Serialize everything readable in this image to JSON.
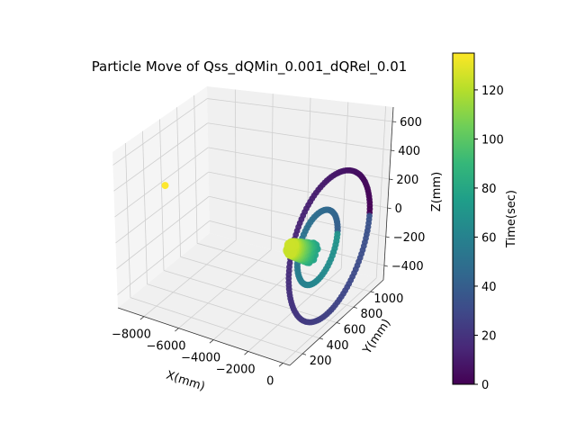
{
  "chart_data": {
    "type": "scatter",
    "projection": "3d",
    "title": "Particle Move of  Qss_dQMin_0.001_dQRel_0.01",
    "xlabel": "X(mm)",
    "ylabel": "Y(mm)",
    "zlabel": "Z(mm)",
    "xlim": [
      -9500,
      400
    ],
    "ylim": [
      50,
      1150
    ],
    "zlim": [
      -500,
      700
    ],
    "xticks": [
      -8000,
      -6000,
      -4000,
      -2000,
      0
    ],
    "xtick_labels": [
      "−8000",
      "−6000",
      "−4000",
      "−2000",
      "0"
    ],
    "yticks": [
      200,
      400,
      600,
      800,
      1000
    ],
    "ytick_labels": [
      "200",
      "400",
      "600",
      "800",
      "1000"
    ],
    "zticks": [
      -400,
      -200,
      0,
      200,
      400,
      600
    ],
    "ztick_labels": [
      "−400",
      "−200",
      "0",
      "200",
      "400",
      "600"
    ],
    "grid": true,
    "colormap": "viridis",
    "color_by": "time",
    "colorbar": {
      "label": "Time(sec)",
      "range": [
        0,
        135
      ],
      "ticks": [
        0,
        20,
        40,
        60,
        80,
        100,
        120
      ],
      "tick_labels": [
        "0",
        "20",
        "40",
        "60",
        "80",
        "100",
        "120"
      ]
    },
    "series": [
      {
        "description": "outer helical orbit",
        "center": {
          "x": -150,
          "y": 600,
          "z": 0
        },
        "radius": 460,
        "time_range": [
          0,
          35
        ]
      },
      {
        "description": "inner helical orbit",
        "center": {
          "x": -800,
          "y": 600,
          "z": -30
        },
        "radius": 230,
        "time_range": [
          40,
          70
        ]
      },
      {
        "description": "drifting cluster",
        "x_range": [
          -2300,
          -1100
        ],
        "center_y": 600,
        "center_z": -80,
        "radius": 60,
        "time_range": [
          75,
          125
        ]
      },
      {
        "description": "isolated point",
        "points": [
          {
            "x": -9300,
            "y": 600,
            "z": 180,
            "t": 135
          }
        ]
      }
    ]
  }
}
